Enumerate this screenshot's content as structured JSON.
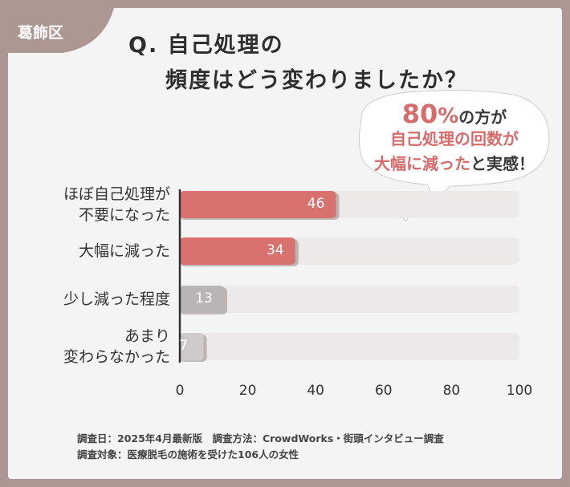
{
  "chart_data": {
    "type": "bar",
    "badge": "葛飾区",
    "title": [
      "Q. 自己処理の",
      "頻度はどう変わりましたか？"
    ],
    "callout": [
      [
        {
          "text": "80",
          "color": "#d56b6a"
        },
        {
          "text": "%",
          "color": "#d56b6a"
        },
        {
          "text": "の方が",
          "color": "#3a3a3a"
        }
      ],
      [
        {
          "text": "自己処理の回数が",
          "color": "#d56b6a"
        }
      ],
      [
        {
          "text": "大幅に減った",
          "color": "#d56b6a"
        },
        {
          "text": "と実感！",
          "color": "#3a3a3a"
        }
      ]
    ],
    "categories": [
      "ほぼ自己処理が\n不要になった",
      "大幅に減った",
      "少し減った程度",
      "あまり\n変わらなかった"
    ],
    "values": [
      46,
      34,
      13,
      7
    ],
    "colors": [
      "#d9716f",
      "#d9716f",
      "#b9b5b4",
      "#cfcbca"
    ],
    "xlim": [
      0,
      100
    ],
    "xticks": [
      0,
      20,
      40,
      60,
      80,
      100
    ],
    "notes": [
      "調査日：2025年4月最新版　調査方法：CrowdWorks・街頭インタビュー調査",
      "調査対象：医療脱毛の施術を受けた106人の女性"
    ]
  }
}
